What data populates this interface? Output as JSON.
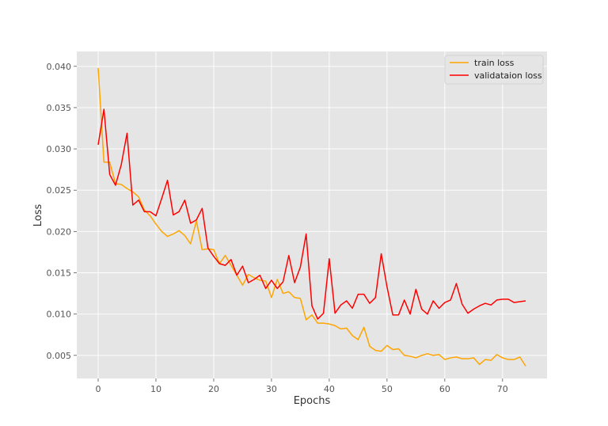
{
  "chart_data": {
    "type": "line",
    "title": "",
    "xlabel": "Epochs",
    "ylabel": "Loss",
    "xlim": [
      -3.7,
      77.7
    ],
    "ylim": [
      0.0022,
      0.0418
    ],
    "xticks": [
      0,
      10,
      20,
      30,
      40,
      50,
      60,
      70
    ],
    "yticks": [
      0.005,
      0.01,
      0.015,
      0.02,
      0.025,
      0.03,
      0.035,
      0.04
    ],
    "ytick_labels": [
      "0.005",
      "0.010",
      "0.015",
      "0.020",
      "0.025",
      "0.030",
      "0.035",
      "0.040"
    ],
    "grid": true,
    "legend_position": "top-right",
    "style": "ggplot",
    "colors": {
      "background": "#e5e5e5",
      "grid": "#ffffff"
    },
    "series": [
      {
        "name": "train loss",
        "color": "#ffa500",
        "x": [
          0,
          1,
          2,
          3,
          4,
          5,
          6,
          7,
          8,
          9,
          10,
          11,
          12,
          13,
          14,
          15,
          16,
          17,
          18,
          19,
          20,
          21,
          22,
          23,
          24,
          25,
          26,
          27,
          28,
          29,
          30,
          31,
          32,
          33,
          34,
          35,
          36,
          37,
          38,
          39,
          40,
          41,
          42,
          43,
          44,
          45,
          46,
          47,
          48,
          49,
          50,
          51,
          52,
          53,
          54,
          55,
          56,
          57,
          58,
          59,
          60,
          61,
          62,
          63,
          64,
          65,
          66,
          67,
          68,
          69,
          70,
          71,
          72,
          73,
          74
        ],
        "values": [
          0.0398,
          0.0284,
          0.0284,
          0.0258,
          0.0257,
          0.0252,
          0.0248,
          0.0242,
          0.0226,
          0.0219,
          0.0209,
          0.02,
          0.0194,
          0.0197,
          0.0201,
          0.0195,
          0.0185,
          0.0213,
          0.0178,
          0.0179,
          0.0178,
          0.0161,
          0.0171,
          0.0159,
          0.0147,
          0.0135,
          0.0148,
          0.0144,
          0.0141,
          0.014,
          0.012,
          0.0142,
          0.0125,
          0.0127,
          0.012,
          0.0119,
          0.0093,
          0.0099,
          0.0089,
          0.0089,
          0.0088,
          0.0086,
          0.0082,
          0.0083,
          0.0074,
          0.0069,
          0.0084,
          0.0061,
          0.0056,
          0.0055,
          0.0062,
          0.0057,
          0.0058,
          0.005,
          0.0049,
          0.0047,
          0.005,
          0.0052,
          0.005,
          0.0051,
          0.0045,
          0.0047,
          0.0048,
          0.0046,
          0.0046,
          0.0047,
          0.0039,
          0.0045,
          0.0044,
          0.0051,
          0.0047,
          0.0045,
          0.0045,
          0.0048,
          0.0037
        ]
      },
      {
        "name": "validataion loss",
        "color": "#ff0000",
        "x": [
          0,
          1,
          2,
          3,
          4,
          5,
          6,
          7,
          8,
          9,
          10,
          11,
          12,
          13,
          14,
          15,
          16,
          17,
          18,
          19,
          20,
          21,
          22,
          23,
          24,
          25,
          26,
          27,
          28,
          29,
          30,
          31,
          32,
          33,
          34,
          35,
          36,
          37,
          38,
          39,
          40,
          41,
          42,
          43,
          44,
          45,
          46,
          47,
          48,
          49,
          50,
          51,
          52,
          53,
          54,
          55,
          56,
          57,
          58,
          59,
          60,
          61,
          62,
          63,
          64,
          65,
          66,
          67,
          68,
          69,
          70,
          71,
          72,
          73,
          74
        ],
        "values": [
          0.0305,
          0.0348,
          0.0269,
          0.0256,
          0.0281,
          0.0319,
          0.0232,
          0.0238,
          0.0224,
          0.0224,
          0.0219,
          0.024,
          0.0262,
          0.022,
          0.0224,
          0.0238,
          0.021,
          0.0214,
          0.0228,
          0.018,
          0.017,
          0.0161,
          0.0159,
          0.0166,
          0.0147,
          0.0158,
          0.0138,
          0.0142,
          0.0147,
          0.0131,
          0.0141,
          0.0131,
          0.0139,
          0.0171,
          0.0138,
          0.0157,
          0.0197,
          0.011,
          0.0094,
          0.0101,
          0.0167,
          0.0101,
          0.0111,
          0.0116,
          0.0107,
          0.0124,
          0.0124,
          0.0113,
          0.012,
          0.0173,
          0.0133,
          0.0099,
          0.0099,
          0.0117,
          0.01,
          0.013,
          0.0106,
          0.01,
          0.0116,
          0.0107,
          0.0114,
          0.0117,
          0.0137,
          0.0112,
          0.0101,
          0.0106,
          0.011,
          0.0113,
          0.0111,
          0.0117,
          0.0118,
          0.0118,
          0.0114,
          0.0115,
          0.0116
        ]
      }
    ]
  }
}
